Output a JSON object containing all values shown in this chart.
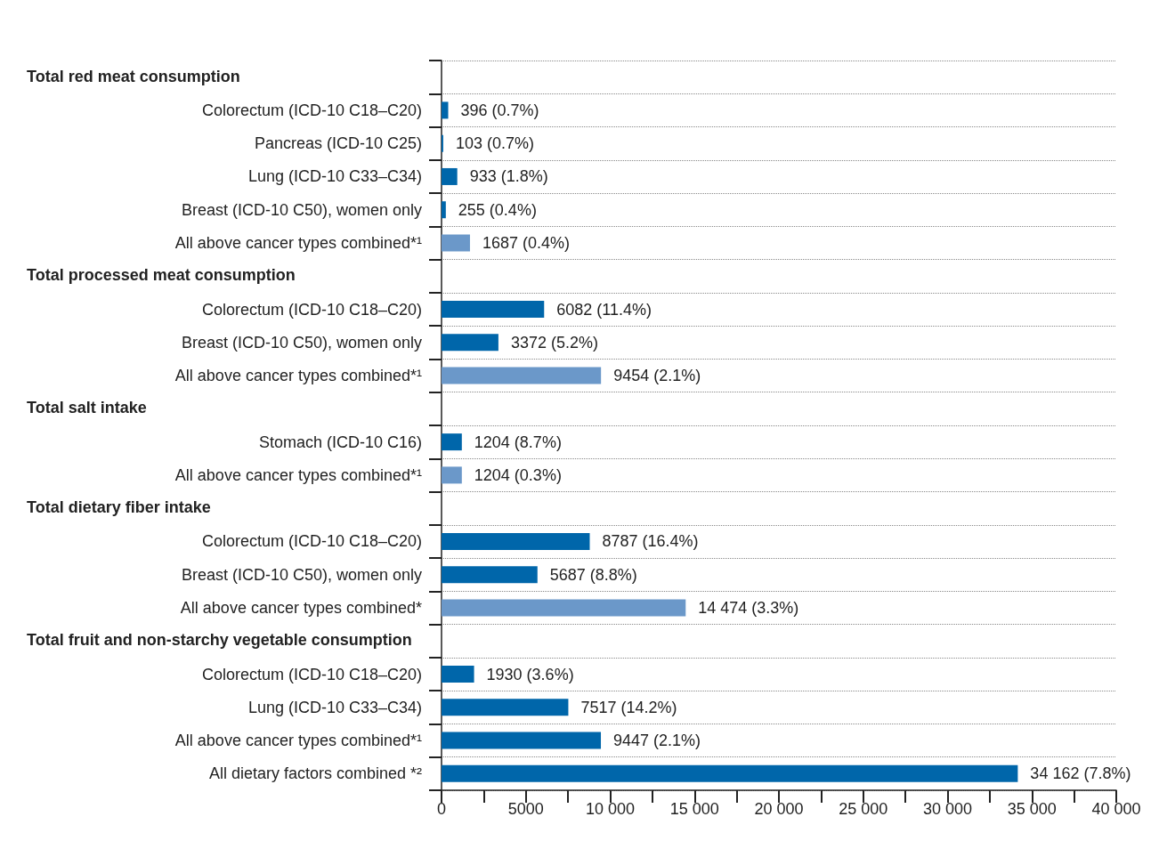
{
  "chart_data": {
    "type": "bar",
    "orientation": "horizontal",
    "annotations": [
      "Total red meat consumption",
      "Total processed meat consumption",
      "Total salt intake",
      "Total dietary fiber intake",
      "Total fruit and non-starchy vegetable consumption"
    ],
    "categories": [
      null,
      "Colorectum (ICD-10 C18–C20)",
      "Pancreas (ICD-10 C25)",
      "Lung (ICD-10 C33–C34)",
      "Breast (ICD-10 C50), women only",
      "All above cancer types combined*¹",
      null,
      "Colorectum (ICD-10 C18–C20)",
      "Breast (ICD-10 C50), women only",
      "All above cancer types combined*¹",
      null,
      "Stomach (ICD-10 C16)",
      "All above cancer types combined*¹",
      null,
      "Colorectum (ICD-10 C18–C20)",
      "Breast (ICD-10 C50), women only",
      "All above cancer types combined*",
      null,
      "Colorectum (ICD-10 C18–C20)",
      "Lung (ICD-10 C33–C34)",
      "All above cancer types combined*¹",
      "All dietary factors combined *²"
    ],
    "values": [
      null,
      396,
      103,
      933,
      255,
      1687,
      null,
      6082,
      3372,
      9454,
      null,
      1204,
      1204,
      null,
      8787,
      5687,
      14474,
      null,
      1930,
      7517,
      9447,
      34162
    ],
    "value_labels": [
      null,
      "396 (0.7%)",
      "103 (0.7%)",
      "933 (1.8%)",
      "255 (0.4%)",
      "1687 (0.4%)",
      null,
      "6082 (11.4%)",
      "3372 (5.2%)",
      "9454 (2.1%)",
      null,
      "1204 (8.7%)",
      "1204 (0.3%)",
      null,
      "8787 (16.4%)",
      "5687 (8.8%)",
      "14 474 (3.3%)",
      null,
      "1930 (3.6%)",
      "7517 (14.2%)",
      "9447 (2.1%)",
      "34 162 (7.8%)"
    ],
    "colors": [
      null,
      "#0066aa",
      "#0066aa",
      "#0066aa",
      "#0066aa",
      "#6b98c9",
      null,
      "#0066aa",
      "#0066aa",
      "#6b98c9",
      null,
      "#0066aa",
      "#6b98c9",
      null,
      "#0066aa",
      "#0066aa",
      "#6b98c9",
      null,
      "#0066aa",
      "#0066aa",
      "#0066aa",
      "#0066aa"
    ],
    "xlim": [
      0,
      40000
    ],
    "xticks": [
      0,
      {
        "value": 2500,
        "label": null
      },
      5000,
      {
        "value": 7500,
        "label": null
      },
      {
        "value": 10000,
        "label": "10 000"
      },
      {
        "value": 12500,
        "label": null
      },
      {
        "value": 15000,
        "label": "15 000"
      },
      {
        "value": 17500,
        "label": null
      },
      {
        "value": 20000,
        "label": "20 000"
      },
      {
        "value": 22500,
        "label": null
      },
      {
        "value": 25000,
        "label": "25 000"
      },
      {
        "value": 27500,
        "label": null
      },
      {
        "value": 30000,
        "label": "30 000"
      },
      {
        "value": 32500,
        "label": null
      },
      {
        "value": 35000,
        "label": "35 000"
      },
      {
        "value": 37500,
        "label": null
      },
      {
        "value": 40000,
        "label": "40 000"
      }
    ],
    "grid": "y"
  }
}
